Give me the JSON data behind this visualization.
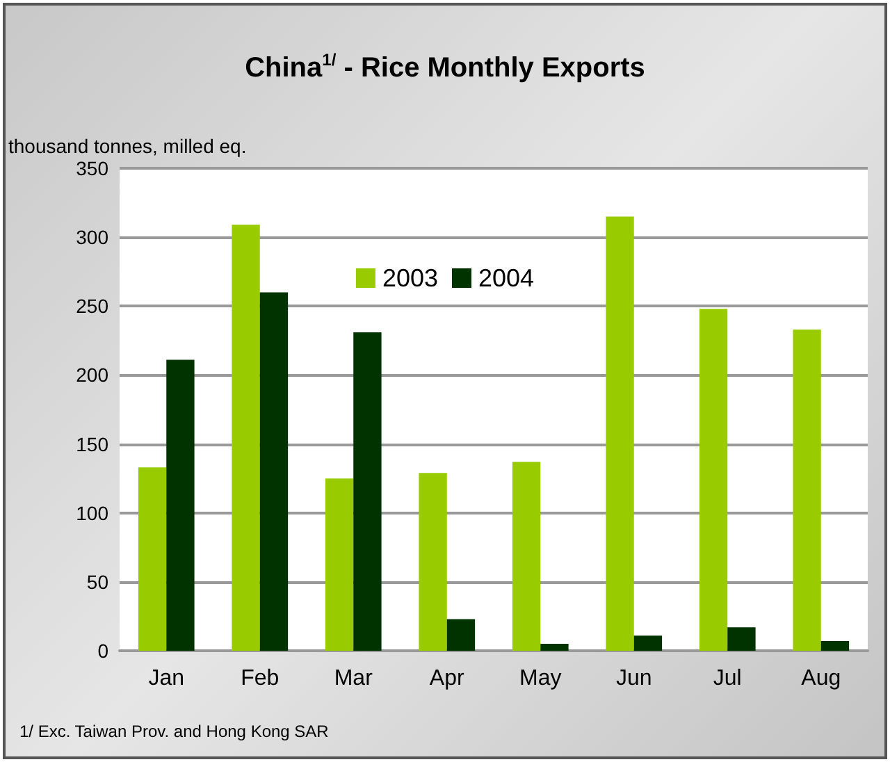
{
  "chart_data": {
    "type": "bar",
    "title": "China$^{1/}$ - Rice Monthly Exports",
    "ylabel": "thousand tonnes, milled eq.",
    "categories": [
      "Jan",
      "Feb",
      "Mar",
      "Apr",
      "May",
      "Jun",
      "Jul",
      "Aug"
    ],
    "series": [
      {
        "name": "2003",
        "color": "#99cc00",
        "values": [
          133,
          309,
          125,
          129,
          137,
          315,
          248,
          233
        ]
      },
      {
        "name": "2004",
        "color": "#003300",
        "values": [
          211,
          260,
          231,
          23,
          5,
          11,
          17,
          7
        ]
      }
    ],
    "ylim": [
      0,
      350
    ],
    "yticks": [
      0,
      50,
      100,
      150,
      200,
      250,
      300,
      350
    ],
    "grid": "y",
    "legend": "top",
    "annotations": [
      "1/ Exc. Taiwan Prov. and Hong Kong SAR"
    ]
  }
}
